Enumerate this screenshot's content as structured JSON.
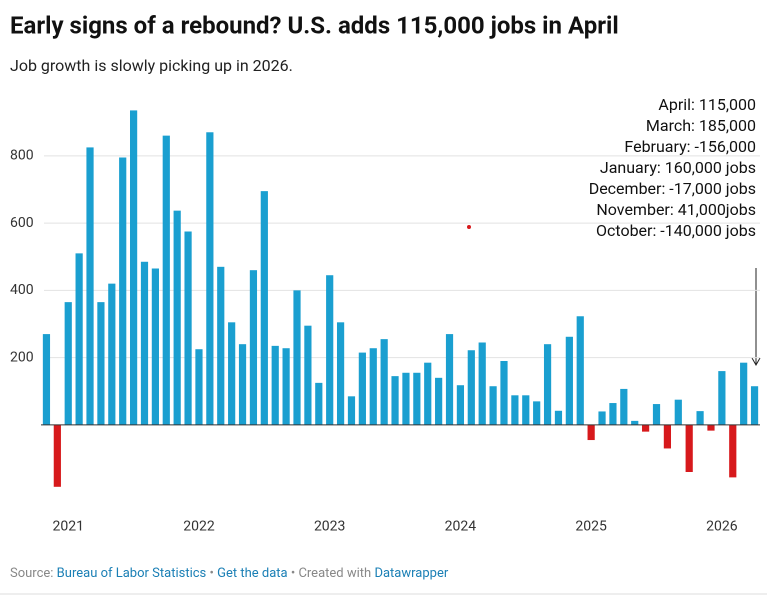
{
  "chart_data": {
    "type": "bar",
    "title": "Early signs of a rebound? U.S. adds 115,000 jobs in April",
    "subtitle": "Job growth is slowly picking up in 2026.",
    "annotation": [
      "April: 115,000",
      "March: 185,000",
      "February: -156,000",
      "January: 160,000 jobs",
      "December: -17,000 jobs",
      "November: 41,000jobs",
      "October: -140,000 jobs"
    ],
    "categories": [
      null,
      null,
      "2021",
      null,
      null,
      null,
      null,
      null,
      null,
      null,
      null,
      null,
      null,
      null,
      "2022",
      null,
      null,
      null,
      null,
      null,
      null,
      null,
      null,
      null,
      null,
      null,
      "2023",
      null,
      null,
      null,
      null,
      null,
      null,
      null,
      null,
      null,
      null,
      null,
      "2024",
      null,
      null,
      null,
      null,
      null,
      null,
      null,
      null,
      null,
      null,
      null,
      "2025",
      null,
      null,
      null,
      null,
      null,
      null,
      null,
      null,
      null,
      null,
      null,
      "2026",
      null,
      null,
      null
    ],
    "values": [
      270,
      -184,
      365,
      510,
      825,
      365,
      420,
      795,
      935,
      485,
      465,
      860,
      637,
      575,
      225,
      870,
      470,
      305,
      240,
      460,
      695,
      235,
      228,
      400,
      295,
      125,
      445,
      305,
      85,
      215,
      228,
      255,
      145,
      155,
      155,
      185,
      140,
      270,
      118,
      222,
      245,
      115,
      190,
      88,
      88,
      70,
      240,
      42,
      262,
      323,
      -45,
      40,
      65,
      107,
      12,
      -20,
      62,
      -70,
      75,
      -140,
      41,
      -17,
      160,
      -156,
      185,
      115
    ],
    "color": "#1a9fd0",
    "negative_color": "#d7191c",
    "ylim": [
      -250,
      960
    ],
    "yticks": [
      200,
      400,
      600,
      800
    ],
    "grid": true,
    "footer": {
      "prefix": "Source:",
      "source": "Bureau of Labor Statistics",
      "sep1": "•",
      "data_link": "Get the data",
      "created": "• Created with",
      "tool": "Datawrapper"
    }
  }
}
